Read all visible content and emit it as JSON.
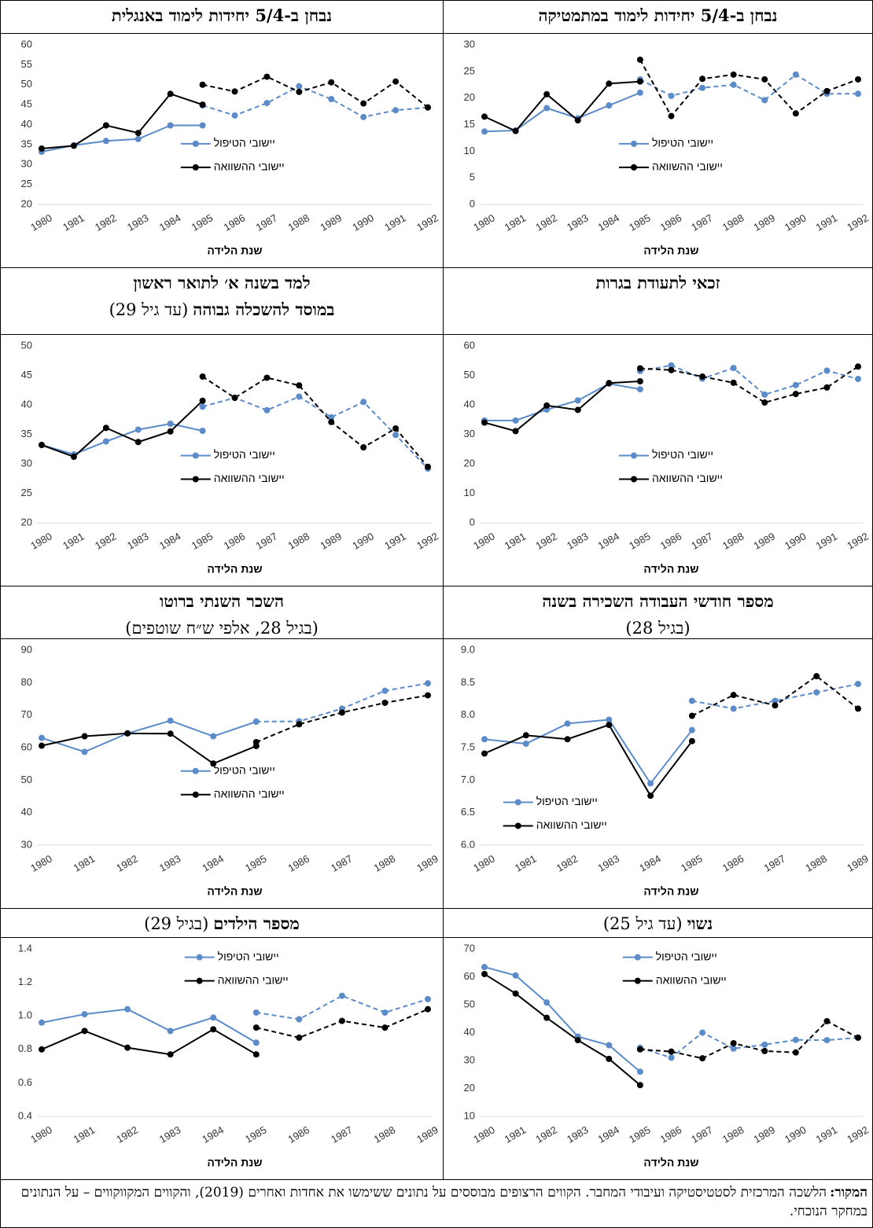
{
  "chart_data": [
    {
      "type": "line",
      "title": [
        [
          {
            "text": "נבחן ב-5/4 יחידות לימוד במתמטיקה",
            "bold": true
          }
        ]
      ],
      "categories": [
        "1980",
        "1981",
        "1982",
        "1983",
        "1984",
        "1985",
        "1986",
        "1987",
        "1988",
        "1989",
        "1990",
        "1991",
        "1992"
      ],
      "xlabel": "שנת הלידה",
      "ylim": [
        0,
        30
      ],
      "yticks": [
        0,
        5,
        10,
        15,
        20,
        25,
        30
      ],
      "legend": "center",
      "series": [
        {
          "name": "יישובי הטיפול",
          "color": "#5b8bc9",
          "values": [
            13.7,
            13.9,
            18.1,
            16.2,
            18.6,
            21.0,
            null,
            null,
            null,
            null,
            null,
            null,
            null
          ],
          "dashed_values": [
            null,
            null,
            null,
            null,
            null,
            23.5,
            20.4,
            21.9,
            22.5,
            19.6,
            24.4,
            20.8,
            20.8
          ]
        },
        {
          "name": "יישובי ההשוואה",
          "color": "#000000",
          "values": [
            16.5,
            13.8,
            20.7,
            15.8,
            22.7,
            23.1,
            null,
            null,
            null,
            null,
            null,
            null,
            null
          ],
          "dashed_values": [
            null,
            null,
            null,
            null,
            null,
            27.2,
            16.6,
            23.6,
            24.4,
            23.5,
            17.1,
            21.3,
            23.5
          ]
        }
      ]
    },
    {
      "type": "line",
      "title": [
        [
          {
            "text": "נבחן ב-5/4 יחידות לימוד באנגלית",
            "bold": true
          }
        ]
      ],
      "categories": [
        "1980",
        "1981",
        "1982",
        "1983",
        "1984",
        "1985",
        "1986",
        "1987",
        "1988",
        "1989",
        "1990",
        "1991",
        "1992"
      ],
      "xlabel": "שנת הלידה",
      "ylim": [
        20,
        60
      ],
      "yticks": [
        20,
        25,
        30,
        35,
        40,
        45,
        50,
        55,
        60
      ],
      "legend": "center",
      "series": [
        {
          "name": "יישובי הטיפול",
          "color": "#5b8bc9",
          "values": [
            33.2,
            34.8,
            35.9,
            36.4,
            39.8,
            39.8,
            null,
            null,
            null,
            null,
            null,
            null,
            null
          ],
          "dashed_values": [
            null,
            null,
            null,
            null,
            null,
            44.8,
            42.3,
            45.4,
            49.6,
            46.4,
            41.9,
            43.6,
            44.3
          ]
        },
        {
          "name": "יישובי ההשוואה",
          "color": "#000000",
          "values": [
            34.0,
            34.7,
            39.8,
            37.9,
            47.7,
            45.0,
            null,
            null,
            null,
            null,
            null,
            null,
            null
          ],
          "dashed_values": [
            null,
            null,
            null,
            null,
            null,
            50.0,
            48.3,
            52.0,
            48.2,
            50.6,
            45.3,
            50.8,
            44.3
          ]
        }
      ]
    },
    {
      "type": "line",
      "title": [
        [
          {
            "text": "זכאי לתעודת בגרות",
            "bold": true
          }
        ]
      ],
      "categories": [
        "1980",
        "1981",
        "1982",
        "1983",
        "1984",
        "1985",
        "1986",
        "1987",
        "1988",
        "1989",
        "1990",
        "1991",
        "1992"
      ],
      "xlabel": "שנת הלידה",
      "ylim": [
        0,
        60
      ],
      "yticks": [
        0,
        10,
        20,
        30,
        40,
        50,
        60
      ],
      "legend": "center",
      "series": [
        {
          "name": "יישובי הטיפול",
          "color": "#5b8bc9",
          "values": [
            34.7,
            34.7,
            38.4,
            41.5,
            47.2,
            45.3,
            null,
            null,
            null,
            null,
            null,
            null,
            null
          ],
          "dashed_values": [
            null,
            null,
            null,
            null,
            null,
            51.5,
            53.4,
            48.9,
            52.5,
            43.5,
            46.7,
            51.6,
            48.8
          ]
        },
        {
          "name": "יישובי ההשוואה",
          "color": "#000000",
          "values": [
            34.0,
            31.1,
            39.8,
            38.3,
            47.4,
            48.0,
            null,
            null,
            null,
            null,
            null,
            null,
            null
          ],
          "dashed_values": [
            null,
            null,
            null,
            null,
            null,
            52.4,
            51.8,
            49.6,
            47.5,
            40.8,
            43.7,
            45.9,
            53.0
          ]
        }
      ]
    },
    {
      "type": "line",
      "title": [
        [
          {
            "text": "למד בשנה א׳ לתואר ראשון",
            "bold": true
          }
        ],
        [
          {
            "text": "במוסד להשכלה גבוהה",
            "bold": true
          },
          {
            "text": "(עד גיל 29)",
            "bold": false
          }
        ]
      ],
      "categories": [
        "1980",
        "1981",
        "1982",
        "1983",
        "1984",
        "1985",
        "1986",
        "1987",
        "1988",
        "1989",
        "1990",
        "1991",
        "1992"
      ],
      "xlabel": "שנת הלידה",
      "ylim": [
        20,
        50
      ],
      "yticks": [
        20,
        25,
        30,
        35,
        40,
        45,
        50
      ],
      "legend": "center",
      "series": [
        {
          "name": "יישובי הטיפול",
          "color": "#5b8bc9",
          "values": [
            33.2,
            31.6,
            33.8,
            35.8,
            36.8,
            35.6,
            null,
            null,
            null,
            null,
            null,
            null,
            null
          ],
          "dashed_values": [
            null,
            null,
            null,
            null,
            null,
            39.7,
            41.2,
            39.1,
            41.4,
            37.9,
            40.5,
            34.9,
            29.2
          ]
        },
        {
          "name": "יישובי ההשוואה",
          "color": "#000000",
          "values": [
            33.2,
            31.2,
            36.1,
            33.7,
            35.5,
            40.7,
            null,
            null,
            null,
            null,
            null,
            null,
            null
          ],
          "dashed_values": [
            null,
            null,
            null,
            null,
            null,
            44.8,
            41.2,
            44.6,
            43.3,
            37.1,
            32.8,
            36.0,
            29.5
          ]
        }
      ]
    },
    {
      "type": "line",
      "title": [
        [
          {
            "text": "מספר חודשי העבודה השכירה בשנה",
            "bold": true
          }
        ],
        [
          {
            "text": "(בגיל 28)",
            "bold": false
          }
        ]
      ],
      "categories": [
        "1980",
        "1981",
        "1982",
        "1983",
        "1984",
        "1985",
        "1986",
        "1987",
        "1988",
        "1989"
      ],
      "xlabel": "שנת הלידה",
      "ylim": [
        6,
        9
      ],
      "yticks": [
        {
          "value": 6,
          "label": "6.0"
        },
        6.5,
        {
          "value": 7,
          "label": "7.0"
        },
        7.5,
        {
          "value": 8,
          "label": "8.0"
        },
        8.5,
        {
          "value": 9,
          "label": "9.0"
        }
      ],
      "legend": "lower left",
      "series": [
        {
          "name": "יישובי הטיפול",
          "color": "#5b8bc9",
          "values": [
            7.63,
            7.56,
            7.87,
            7.93,
            6.95,
            7.77,
            null,
            null,
            null,
            null
          ],
          "dashed_values": [
            null,
            null,
            null,
            null,
            null,
            8.22,
            8.1,
            8.22,
            8.35,
            8.48
          ]
        },
        {
          "name": "יישובי ההשוואה",
          "color": "#000000",
          "values": [
            7.41,
            7.69,
            7.63,
            7.85,
            6.76,
            7.6,
            null,
            null,
            null,
            null
          ],
          "dashed_values": [
            null,
            null,
            null,
            null,
            null,
            7.99,
            8.31,
            8.15,
            8.6,
            8.1
          ]
        }
      ]
    },
    {
      "type": "line",
      "title": [
        [
          {
            "text": "השכר השנתי ברוטו",
            "bold": true
          }
        ],
        [
          {
            "text": "(בגיל 28, אלפי ש״ח שוטפים)",
            "bold": false
          }
        ]
      ],
      "categories": [
        "1980",
        "1981",
        "1982",
        "1983",
        "1984",
        "1985",
        "1986",
        "1987",
        "1988",
        "1989"
      ],
      "xlabel": "שנת הלידה",
      "ylim": [
        30,
        90
      ],
      "yticks": [
        30,
        40,
        50,
        60,
        70,
        80,
        90
      ],
      "legend": "center",
      "series": [
        {
          "name": "יישובי הטיפול",
          "color": "#5b8bc9",
          "values": [
            63.0,
            58.7,
            64.4,
            68.3,
            63.5,
            68.0,
            null,
            null,
            null,
            null
          ],
          "dashed_values": [
            null,
            null,
            null,
            null,
            null,
            68.0,
            68.1,
            72.0,
            77.5,
            79.8
          ]
        },
        {
          "name": "יישובי ההשוואה",
          "color": "#000000",
          "values": [
            60.6,
            63.5,
            64.4,
            64.3,
            55.1,
            60.5,
            null,
            null,
            null,
            null
          ],
          "dashed_values": [
            null,
            null,
            null,
            null,
            null,
            61.7,
            67.2,
            70.8,
            73.8,
            76.1
          ]
        }
      ]
    },
    {
      "type": "line",
      "title": [
        [
          {
            "text": "נשוי",
            "bold": true
          },
          {
            "text": "(עד גיל 25)",
            "bold": false
          }
        ]
      ],
      "categories": [
        "1980",
        "1981",
        "1982",
        "1983",
        "1984",
        "1985",
        "1986",
        "1987",
        "1988",
        "1989",
        "1990",
        "1991",
        "1992"
      ],
      "xlabel": "שנת הלידה",
      "ylim": [
        10,
        70
      ],
      "yticks": [
        10,
        20,
        30,
        40,
        50,
        60,
        70
      ],
      "legend": "upper center",
      "series": [
        {
          "name": "יישובי הטיפול",
          "color": "#5b8bc9",
          "values": [
            63.5,
            60.5,
            50.8,
            38.6,
            35.5,
            26.0,
            null,
            null,
            null,
            null,
            null,
            null,
            null
          ],
          "dashed_values": [
            null,
            null,
            null,
            null,
            null,
            34.6,
            31.0,
            40.0,
            34.3,
            35.7,
            37.4,
            37.3,
            38.2
          ]
        },
        {
          "name": "יישובי ההשוואה",
          "color": "#000000",
          "values": [
            61.0,
            54.0,
            45.3,
            37.3,
            30.6,
            21.2,
            null,
            null,
            null,
            null,
            null,
            null,
            null
          ],
          "dashed_values": [
            null,
            null,
            null,
            null,
            null,
            34.0,
            33.2,
            30.8,
            36.2,
            33.4,
            32.9,
            44.1,
            38.2
          ]
        }
      ]
    },
    {
      "type": "line",
      "title": [
        [
          {
            "text": "מספר הילדים",
            "bold": true
          },
          {
            "text": "(בגיל 29)",
            "bold": false
          }
        ]
      ],
      "categories": [
        "1980",
        "1981",
        "1982",
        "1983",
        "1984",
        "1985",
        "1986",
        "1987",
        "1988",
        "1989"
      ],
      "xlabel": "שנת הלידה",
      "ylim": [
        0.4,
        1.4
      ],
      "yticks": [
        0.4,
        0.6,
        0.8,
        {
          "value": 1,
          "label": "1.0"
        },
        1.2,
        1.4
      ],
      "legend": "upper center",
      "series": [
        {
          "name": "יישובי הטיפול",
          "color": "#5b8bc9",
          "values": [
            0.96,
            1.01,
            1.04,
            0.91,
            0.99,
            0.84,
            null,
            null,
            null,
            null
          ],
          "dashed_values": [
            null,
            null,
            null,
            null,
            null,
            1.02,
            0.98,
            1.12,
            1.02,
            1.1
          ]
        },
        {
          "name": "יישובי ההשוואה",
          "color": "#000000",
          "values": [
            0.8,
            0.91,
            0.81,
            0.77,
            0.92,
            0.77,
            null,
            null,
            null,
            null
          ],
          "dashed_values": [
            null,
            null,
            null,
            null,
            null,
            0.93,
            0.87,
            0.97,
            0.93,
            1.04
          ]
        }
      ]
    }
  ],
  "source": {
    "label": "המקור:",
    "text": "הלשכה המרכזית לסטטיסטיקה ועיבודי המחבר. הקווים הרצופים מבוססים על נתונים ששימשו את אחדות ואחרים (2019), והקווים המקווקווים – על הנתונים במחקר הנוכחי."
  }
}
